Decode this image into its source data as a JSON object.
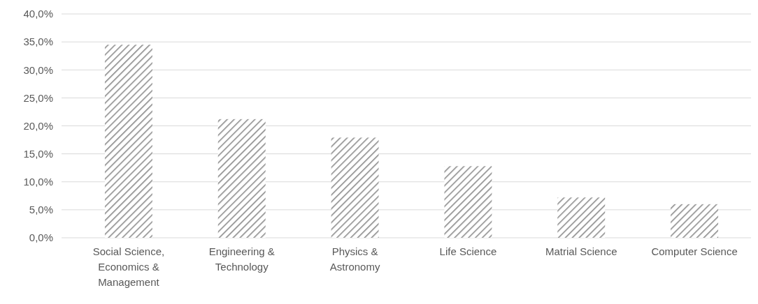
{
  "chart_data": {
    "type": "bar",
    "categories": [
      "Social Science, Economics & Management",
      "Engineering & Technology",
      "Physics & Astronomy",
      "Life Science",
      "Matrial Science",
      "Computer Science"
    ],
    "values": [
      34.5,
      21.2,
      17.9,
      12.8,
      7.2,
      6.0
    ],
    "color": "#8c8c8c",
    "ylim": [
      0,
      40
    ],
    "yticks": [
      {
        "value": 0,
        "label": "0,0%"
      },
      {
        "value": 5,
        "label": "5,0%"
      },
      {
        "value": 10,
        "label": "10,0%"
      },
      {
        "value": 15,
        "label": "15,0%"
      },
      {
        "value": 20,
        "label": "20,0%"
      },
      {
        "value": 25,
        "label": "25,0%"
      },
      {
        "value": 30,
        "label": "30,0%"
      },
      {
        "value": 35,
        "label": "35,0%"
      },
      {
        "value": 40,
        "label": "40,0%"
      }
    ],
    "grid": "y"
  }
}
